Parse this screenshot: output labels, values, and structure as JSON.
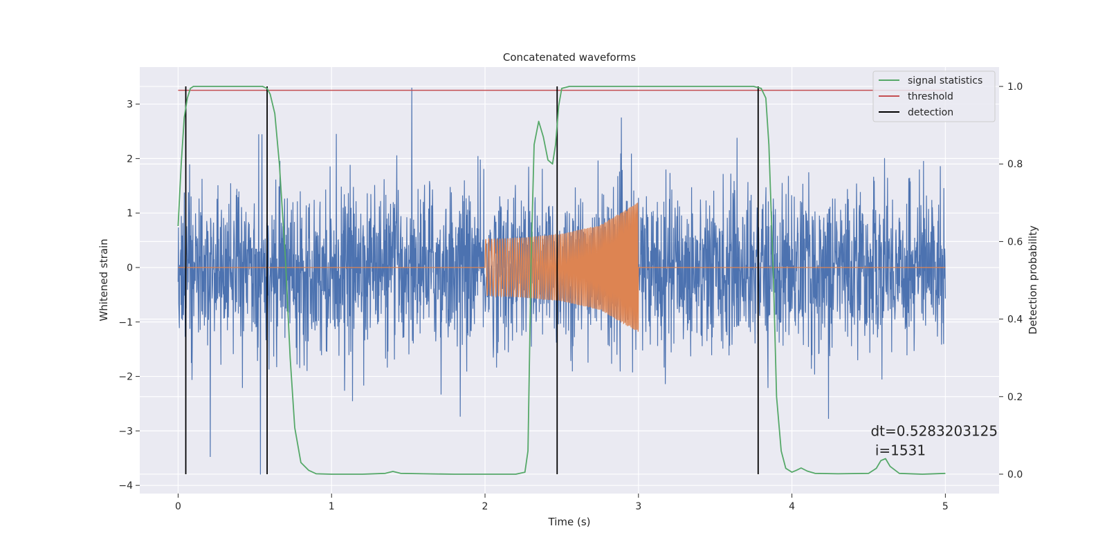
{
  "chart_data": {
    "type": "line",
    "title": "Concatenated waveforms",
    "xlabel": "Time (s)",
    "ylabel_left": "Whitened strain",
    "ylabel_right": "Detection probability",
    "xlim": [
      -0.25,
      5.35
    ],
    "ylim_left": [
      -4.15,
      3.68
    ],
    "ylim_right": [
      -0.05,
      1.05
    ],
    "x_ticks": [
      0,
      1,
      2,
      3,
      4,
      5
    ],
    "x_tick_labels": [
      "0",
      "1",
      "2",
      "3",
      "4",
      "5"
    ],
    "y_ticks_left": [
      -4,
      -3,
      -2,
      -1,
      0,
      1,
      2,
      3
    ],
    "y_tick_labels_left": [
      "−4",
      "−3",
      "−2",
      "−1",
      "0",
      "1",
      "2",
      "3"
    ],
    "y_ticks_right": [
      0.0,
      0.2,
      0.4,
      0.6,
      0.8,
      1.0
    ],
    "y_tick_labels_right": [
      "0.0",
      "0.2",
      "0.4",
      "0.6",
      "0.8",
      "1.0"
    ],
    "grid": true,
    "legend_placement": "top-right",
    "colors": {
      "background": "#eaeaf2",
      "grid": "#ffffff",
      "strain": "#4c72b0",
      "injection": "#dd8452",
      "signal_statistics": "#55a868",
      "threshold": "#c44e52",
      "detection": "#000000"
    },
    "series": [
      {
        "name": "",
        "axis": "left",
        "description_kind": "noise",
        "x_range": [
          0,
          5
        ],
        "envelope_typical": [
          -1.7,
          1.7
        ],
        "extremes": [
          -3.8,
          3.3
        ]
      },
      {
        "name": "",
        "axis": "left",
        "description_kind": "chirp",
        "x": [
          2.0,
          2.25,
          2.5,
          2.75,
          3.0
        ],
        "amplitude": [
          0.52,
          0.55,
          0.62,
          0.78,
          1.2
        ],
        "baseline": 0
      },
      {
        "name": "signal statistics",
        "axis": "right",
        "x": [
          0.0,
          0.02,
          0.04,
          0.06,
          0.08,
          0.1,
          0.15,
          0.3,
          0.5,
          0.55,
          0.58,
          0.6,
          0.63,
          0.66,
          0.7,
          0.73,
          0.76,
          0.8,
          0.85,
          0.9,
          1.0,
          1.2,
          1.35,
          1.4,
          1.45,
          1.6,
          1.8,
          2.0,
          2.2,
          2.26,
          2.28,
          2.3,
          2.32,
          2.35,
          2.38,
          2.41,
          2.44,
          2.46,
          2.48,
          2.5,
          2.55,
          2.7,
          3.0,
          3.3,
          3.6,
          3.75,
          3.8,
          3.83,
          3.85,
          3.88,
          3.9,
          3.93,
          3.96,
          4.0,
          4.03,
          4.06,
          4.1,
          4.15,
          4.3,
          4.5,
          4.55,
          4.58,
          4.61,
          4.64,
          4.7,
          4.85,
          5.0
        ],
        "y": [
          0.64,
          0.8,
          0.92,
          0.97,
          0.995,
          1.0,
          1.0,
          1.0,
          1.0,
          1.0,
          0.995,
          0.98,
          0.93,
          0.8,
          0.55,
          0.3,
          0.12,
          0.03,
          0.01,
          0.001,
          0.0,
          0.0,
          0.002,
          0.007,
          0.002,
          0.001,
          0.0,
          0.0,
          0.0,
          0.005,
          0.06,
          0.55,
          0.85,
          0.91,
          0.87,
          0.81,
          0.8,
          0.85,
          0.95,
          0.995,
          1.0,
          1.0,
          1.0,
          1.0,
          1.0,
          1.0,
          0.995,
          0.97,
          0.85,
          0.5,
          0.2,
          0.06,
          0.015,
          0.005,
          0.01,
          0.016,
          0.008,
          0.002,
          0.001,
          0.002,
          0.015,
          0.035,
          0.04,
          0.02,
          0.002,
          0.0,
          0.002
        ]
      },
      {
        "name": "threshold",
        "axis": "right",
        "x": [
          0,
          5
        ],
        "y": [
          0.99,
          0.99
        ]
      },
      {
        "name": "detection",
        "axis": "right",
        "x": [
          0.05,
          0.58,
          2.47,
          3.78
        ],
        "y_range": [
          0,
          1
        ]
      }
    ],
    "legend": [
      {
        "name": "signal statistics",
        "color": "#55a868"
      },
      {
        "name": "threshold",
        "color": "#c44e52"
      },
      {
        "name": "detection",
        "color": "#000000"
      }
    ],
    "annotation": {
      "line1": "dt=0.5283203125",
      "line2": " i=1531",
      "x": 4.5,
      "y": -3.0
    }
  }
}
